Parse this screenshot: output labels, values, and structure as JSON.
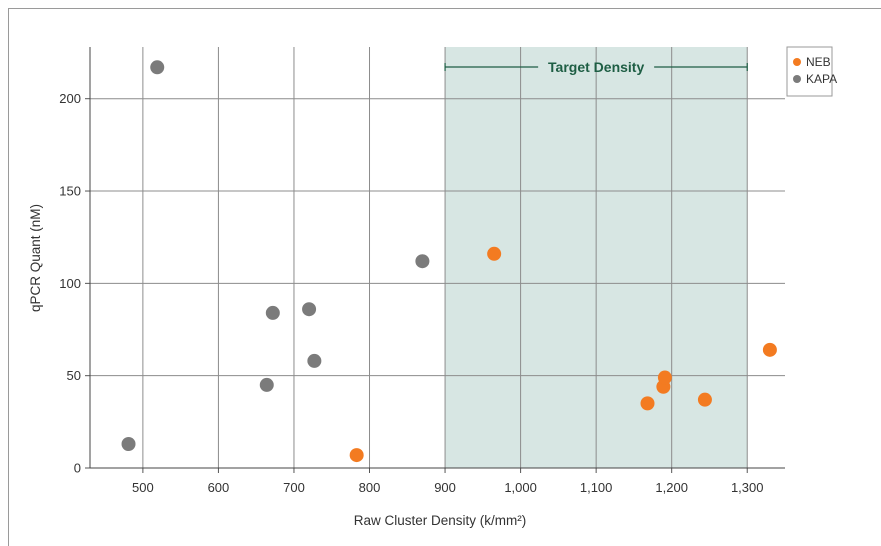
{
  "chart_data": {
    "type": "scatter",
    "title": "",
    "xlabel": "Raw Cluster Density (k/mm²)",
    "ylabel": "qPCR Quant (nM)",
    "xlim": [
      430,
      1350
    ],
    "ylim": [
      0,
      228
    ],
    "x_ticks": [
      500,
      600,
      700,
      800,
      900,
      1000,
      1100,
      1200,
      1300
    ],
    "x_tick_labels": [
      "500",
      "600",
      "700",
      "800",
      "900",
      "1,000",
      "1,100",
      "1,200",
      "1,300"
    ],
    "y_ticks": [
      0,
      50,
      100,
      150,
      200
    ],
    "y_tick_labels": [
      "0",
      "50",
      "100",
      "150",
      "200"
    ],
    "grid": true,
    "legend_position": "top-right",
    "target_region": {
      "label": "Target Density",
      "x_range": [
        900,
        1300
      ],
      "color": "#d7e6e3"
    },
    "series": [
      {
        "name": "NEB",
        "color": "#f37b21",
        "points": [
          {
            "x": 783,
            "y": 7
          },
          {
            "x": 965,
            "y": 116
          },
          {
            "x": 1168,
            "y": 35
          },
          {
            "x": 1189,
            "y": 44
          },
          {
            "x": 1191,
            "y": 49
          },
          {
            "x": 1244,
            "y": 37
          },
          {
            "x": 1330,
            "y": 64
          }
        ]
      },
      {
        "name": "KAPA",
        "color": "#7b7b7b",
        "points": [
          {
            "x": 481,
            "y": 13
          },
          {
            "x": 519,
            "y": 217
          },
          {
            "x": 664,
            "y": 45
          },
          {
            "x": 672,
            "y": 84
          },
          {
            "x": 720,
            "y": 86
          },
          {
            "x": 727,
            "y": 58
          },
          {
            "x": 870,
            "y": 112
          }
        ]
      }
    ]
  }
}
